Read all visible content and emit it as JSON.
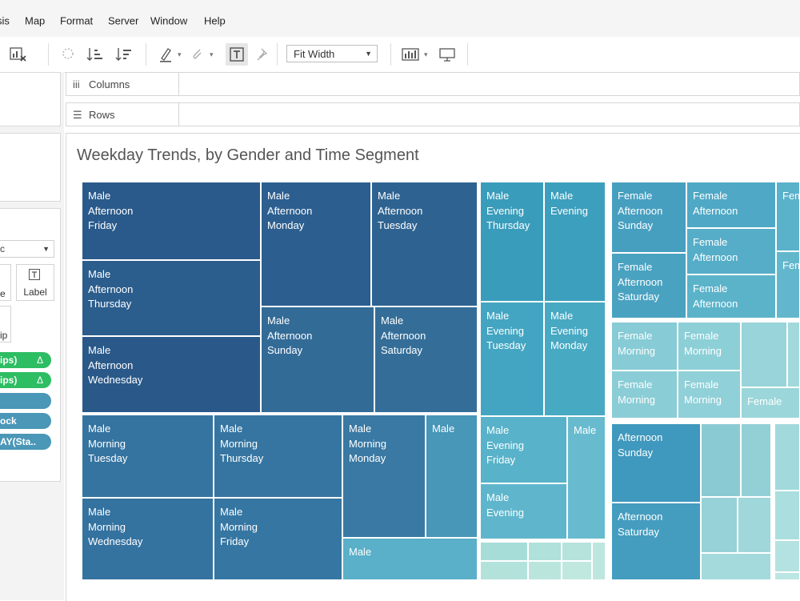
{
  "menu": {
    "items": [
      "sis",
      "Map",
      "Format",
      "Server",
      "Window",
      "Help"
    ]
  },
  "toolbar": {
    "fit_select": "Fit Width",
    "icons": [
      "clear-sheet-icon",
      "lasso-icon",
      "sort-ascending-icon",
      "sort-descending-icon",
      "highlight-icon",
      "annotate-icon",
      "show-labels-icon",
      "pin-icon",
      "show-me-icon",
      "presentation-icon"
    ]
  },
  "shelves": {
    "columns_label": "Columns",
    "rows_label": "Rows"
  },
  "marks": {
    "type_select": "c",
    "label_btn": "Label",
    "size_btn_partial": "e",
    "tooltip_btn_partial": "ip",
    "pills": [
      {
        "text": "ips)",
        "delta": "Δ",
        "color": "#2dbd62"
      },
      {
        "text": "ips)",
        "delta": "Δ",
        "color": "#2dbd62"
      },
      {
        "text": "",
        "delta": "",
        "color": "#4a97b7"
      },
      {
        "text": "ock",
        "delta": "",
        "color": "#4a97b7"
      },
      {
        "text": "AY(Sta..",
        "delta": "",
        "color": "#4a97b7"
      }
    ]
  },
  "viz": {
    "title": "Weekday Trends, by Gender and Time Segment",
    "tiles": [
      {
        "lines": [
          "Male",
          "Afternoon",
          "Friday"
        ],
        "color": "#2a5a8b"
      },
      {
        "lines": [
          "Male",
          "Afternoon",
          "Monday"
        ],
        "color": "#2c5e8f"
      },
      {
        "lines": [
          "Male",
          "Afternoon",
          "Tuesday"
        ],
        "color": "#2e6391"
      },
      {
        "lines": [
          "Male",
          "Afternoon",
          "Thursday"
        ],
        "color": "#2b5d8d"
      },
      {
        "lines": [
          "Male",
          "Afternoon",
          "Wednesday"
        ],
        "color": "#2a5989"
      },
      {
        "lines": [
          "Male",
          "Afternoon",
          "Sunday"
        ],
        "color": "#336b97"
      },
      {
        "lines": [
          "Male",
          "Afternoon",
          "Saturday"
        ],
        "color": "#346e98"
      },
      {
        "lines": [
          "Male",
          "Morning",
          "Tuesday"
        ],
        "color": "#3574a0"
      },
      {
        "lines": [
          "Male",
          "Morning",
          "Thursday"
        ],
        "color": "#3675a1"
      },
      {
        "lines": [
          "Male",
          "Morning",
          "Monday"
        ],
        "color": "#3979a4"
      },
      {
        "lines": [
          "Male"
        ],
        "color": "#4896b8"
      },
      {
        "lines": [
          "Male",
          "Morning",
          "Wednesday"
        ],
        "color": "#3472a0"
      },
      {
        "lines": [
          "Male",
          "Morning",
          "Friday"
        ],
        "color": "#3676a2"
      },
      {
        "lines": [
          "Male"
        ],
        "color": "#59b0c8"
      },
      {
        "lines": [
          "Male",
          "Evening",
          "Thursday"
        ],
        "color": "#3a9cbb"
      },
      {
        "lines": [
          "Male",
          "Evening"
        ],
        "color": "#3c9fbd"
      },
      {
        "lines": [
          "Male",
          "Evening",
          "Tuesday"
        ],
        "color": "#43a5c1"
      },
      {
        "lines": [
          "Male",
          "Evening",
          "Monday"
        ],
        "color": "#48a9c3"
      },
      {
        "lines": [
          "Male",
          "Evening",
          "Friday"
        ],
        "color": "#58b2c9"
      },
      {
        "lines": [
          "Male"
        ],
        "color": "#68bbcf"
      },
      {
        "lines": [
          "Male",
          "Evening"
        ],
        "color": "#5fb6cc"
      },
      {
        "lines": [
          "Female",
          "Afternoon",
          "Sunday"
        ],
        "color": "#479fc0"
      },
      {
        "lines": [
          "Female",
          "Afternoon"
        ],
        "color": "#4fa8c5"
      },
      {
        "lines": [
          "Fem"
        ],
        "color": "#5ab1ca"
      },
      {
        "lines": [
          "Female",
          "Afternoon"
        ],
        "color": "#56adc8"
      },
      {
        "lines": [
          "Fem"
        ],
        "color": "#63b7cd"
      },
      {
        "lines": [
          "Female",
          "Afternoon",
          "Saturday"
        ],
        "color": "#4aa2c1"
      },
      {
        "lines": [
          "Female",
          "Afternoon"
        ],
        "color": "#5bb3ca"
      },
      {
        "lines": [
          "Female",
          "Morning"
        ],
        "color": "#86cbd5"
      },
      {
        "lines": [
          "Female",
          "Morning"
        ],
        "color": "#8dcfd7"
      },
      {
        "lines": [
          "Female",
          "Morning"
        ],
        "color": "#8acdd6"
      },
      {
        "lines": [
          "Female",
          "Morning"
        ],
        "color": "#90d0d8"
      },
      {
        "lines": [
          "Female"
        ],
        "color": "#9ad6da"
      },
      {
        "lines": [
          "Afternoon",
          "Sunday"
        ],
        "color": "#3f98bd"
      },
      {
        "lines": [
          "Afternoon",
          "Saturday"
        ],
        "color": "#449dbf"
      }
    ]
  }
}
